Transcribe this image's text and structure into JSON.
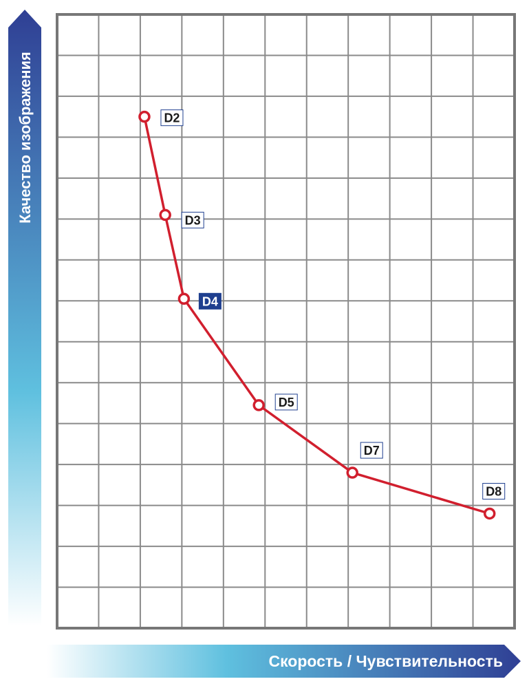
{
  "chart_data": {
    "type": "line",
    "title": "",
    "xlabel": "Скорость / Чувствительность",
    "ylabel": "Качество изображения",
    "grid": true,
    "x_ticks_shown": false,
    "y_ticks_shown": false,
    "xlim": [
      0,
      11
    ],
    "ylim": [
      0,
      15
    ],
    "series": [
      {
        "color": "#d11f2e",
        "points": [
          {
            "label": "D2",
            "x": 2.1,
            "y": 12.5,
            "highlight": false
          },
          {
            "label": "D3",
            "x": 2.6,
            "y": 10.1,
            "highlight": false
          },
          {
            "label": "D4",
            "x": 3.05,
            "y": 8.05,
            "highlight": true
          },
          {
            "label": "D5",
            "x": 4.85,
            "y": 5.45,
            "highlight": false
          },
          {
            "label": "D7",
            "x": 7.1,
            "y": 3.8,
            "highlight": false
          },
          {
            "label": "D8",
            "x": 10.4,
            "y": 2.8,
            "highlight": false
          }
        ]
      }
    ]
  },
  "colors": {
    "line": "#d11f2e",
    "grid": "#8a8a8a",
    "label_border": "#1f3f8f",
    "highlight_fill": "#1f3f8f",
    "axis_gradient": [
      "#2f3f94",
      "#5fc0df",
      "#ffffff"
    ]
  }
}
